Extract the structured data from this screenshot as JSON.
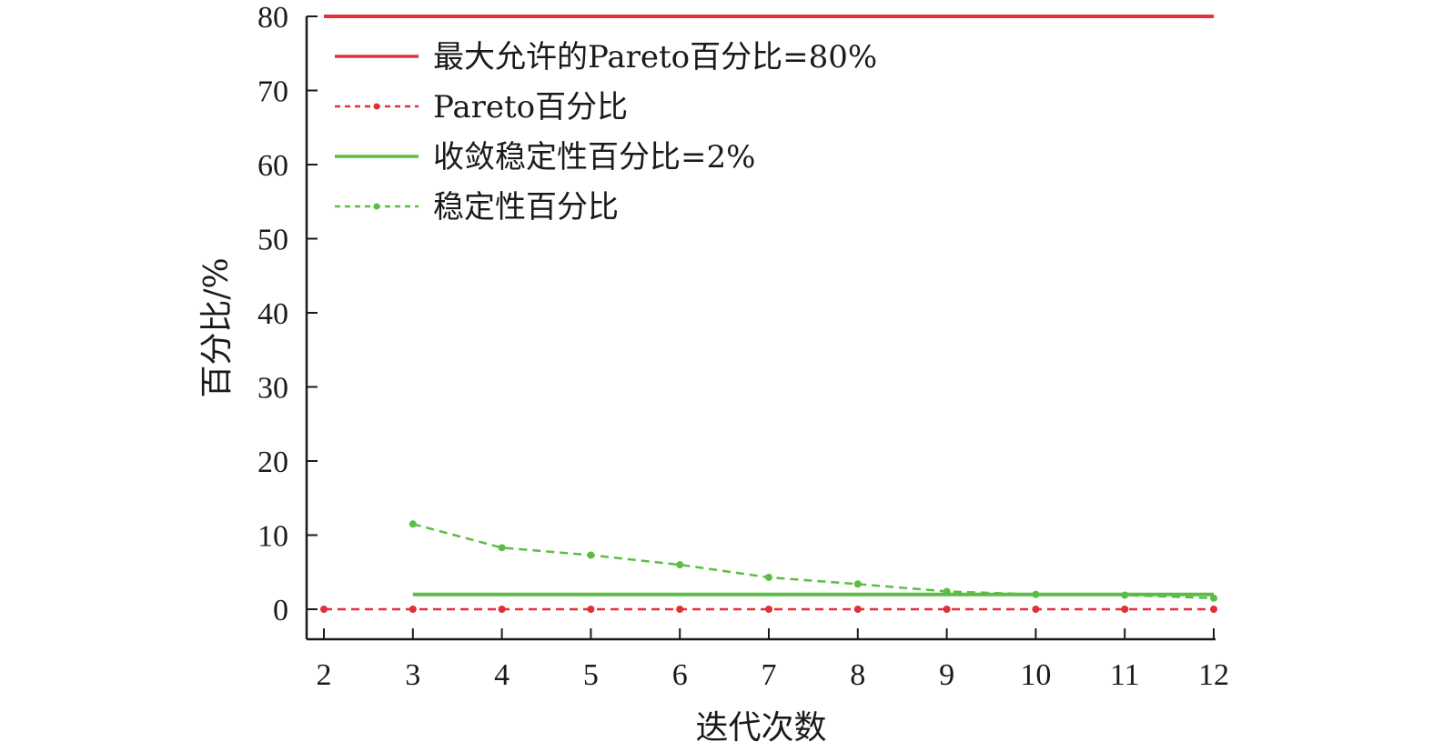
{
  "chart_data": {
    "type": "line",
    "xlabel": "迭代次数",
    "ylabel": "百分比/%",
    "xlim": [
      2,
      12
    ],
    "ylim": [
      0,
      80
    ],
    "xticks": [
      "2",
      "3",
      "4",
      "5",
      "6",
      "7",
      "8",
      "9",
      "10",
      "11",
      "12"
    ],
    "yticks": [
      "0",
      "10",
      "20",
      "30",
      "40",
      "50",
      "60",
      "70",
      "80"
    ],
    "grid": false,
    "legend_position": "top-left",
    "series": [
      {
        "name": "最大允许的Pareto百分比=80%",
        "style": "solid",
        "color": "#e0303a",
        "marker": false,
        "x": [
          2,
          12
        ],
        "y": [
          80,
          80
        ]
      },
      {
        "name": "Pareto百分比",
        "style": "dashed",
        "color": "#e0303a",
        "marker": true,
        "x": [
          2,
          3,
          4,
          5,
          6,
          7,
          8,
          9,
          10,
          11,
          12
        ],
        "y": [
          0,
          0,
          0,
          0,
          0,
          0,
          0,
          0,
          0,
          0,
          0
        ]
      },
      {
        "name": "收敛稳定性百分比=2%",
        "style": "solid",
        "color": "#5cbd45",
        "marker": false,
        "x": [
          3,
          12
        ],
        "y": [
          2,
          2
        ]
      },
      {
        "name": "稳定性百分比",
        "style": "dashed",
        "color": "#5cbd45",
        "marker": true,
        "x": [
          3,
          4,
          5,
          6,
          7,
          8,
          9,
          10,
          11,
          12
        ],
        "y": [
          11.5,
          8.3,
          7.3,
          6.0,
          4.3,
          3.4,
          2.4,
          2.0,
          1.9,
          1.5
        ]
      }
    ]
  }
}
